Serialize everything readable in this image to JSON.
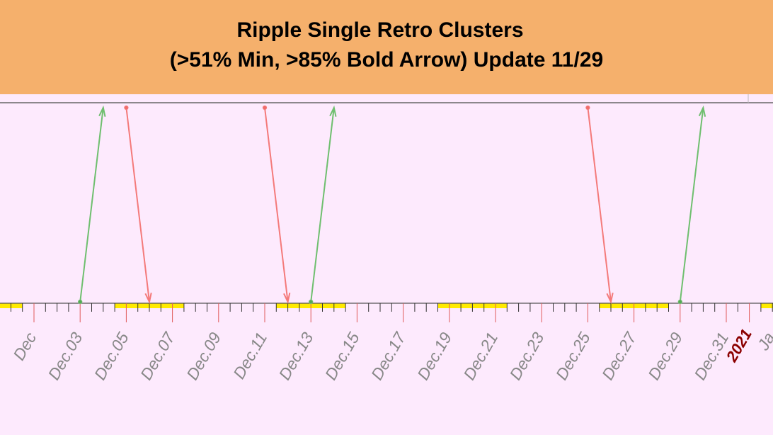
{
  "title": {
    "line1": "Ripple Single Retro Clusters",
    "line2": "(>51% Min, >85% Bold Arrow) Update 11/29"
  },
  "colors": {
    "banner": "#f5b06c",
    "plot_background": "#fdeafd",
    "up_arrow": "#6fbf6f",
    "down_arrow": "#f47a7a",
    "cluster_bar": "#ffea00",
    "year_label": "#8b0000",
    "axis": "#555555"
  },
  "chart_data": {
    "type": "timeline",
    "x_axis": {
      "type": "date",
      "range": [
        "2020-11-30",
        "2021-01-01"
      ],
      "tick_labels": [
        {
          "date": "2020-12-01",
          "label": "Dec"
        },
        {
          "date": "2020-12-03",
          "label": "Dec.03"
        },
        {
          "date": "2020-12-05",
          "label": "Dec.05"
        },
        {
          "date": "2020-12-07",
          "label": "Dec.07"
        },
        {
          "date": "2020-12-09",
          "label": "Dec.09"
        },
        {
          "date": "2020-12-11",
          "label": "Dec.11"
        },
        {
          "date": "2020-12-13",
          "label": "Dec.13"
        },
        {
          "date": "2020-12-15",
          "label": "Dec.15"
        },
        {
          "date": "2020-12-17",
          "label": "Dec.17"
        },
        {
          "date": "2020-12-19",
          "label": "Dec.19"
        },
        {
          "date": "2020-12-21",
          "label": "Dec.21"
        },
        {
          "date": "2020-12-23",
          "label": "Dec.23"
        },
        {
          "date": "2020-12-25",
          "label": "Dec.25"
        },
        {
          "date": "2020-12-27",
          "label": "Dec.27"
        },
        {
          "date": "2020-12-29",
          "label": "Dec.29"
        },
        {
          "date": "2020-12-31",
          "label": "Dec.31"
        },
        {
          "date": "2021-01-01",
          "label": "2021",
          "style": "year"
        },
        {
          "date": "2021-01-02",
          "label": "Ja"
        }
      ]
    },
    "cluster_bars": [
      {
        "start": "2020-11-30",
        "end": "2020-11-30"
      },
      {
        "start": "2020-12-05",
        "end": "2020-12-07"
      },
      {
        "start": "2020-12-12",
        "end": "2020-12-14"
      },
      {
        "start": "2020-12-19",
        "end": "2020-12-21"
      },
      {
        "start": "2020-12-26",
        "end": "2020-12-28"
      },
      {
        "start": "2021-01-02",
        "end": "2021-01-02"
      }
    ],
    "arrows": [
      {
        "direction": "up",
        "start": "2020-12-03",
        "end": "2020-12-04"
      },
      {
        "direction": "down",
        "start": "2020-12-05",
        "end": "2020-12-06"
      },
      {
        "direction": "down",
        "start": "2020-12-11",
        "end": "2020-12-12"
      },
      {
        "direction": "up",
        "start": "2020-12-13",
        "end": "2020-12-14"
      },
      {
        "direction": "down",
        "start": "2020-12-25",
        "end": "2020-12-26"
      },
      {
        "direction": "up",
        "start": "2020-12-29",
        "end": "2020-12-30"
      }
    ]
  }
}
